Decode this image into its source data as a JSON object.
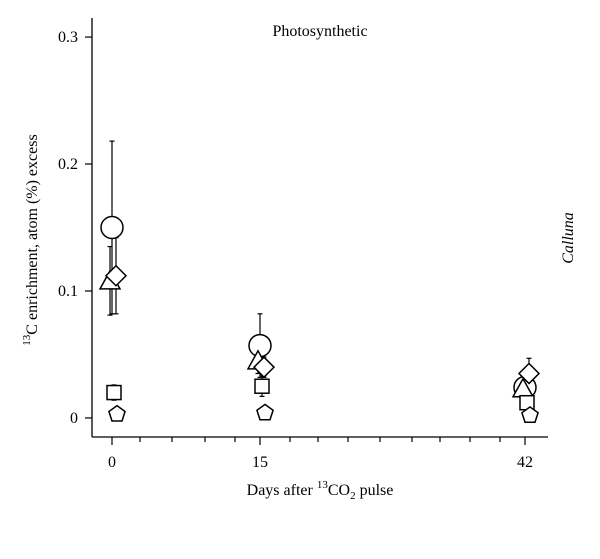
{
  "chart_data": {
    "type": "scatter",
    "title": "Photosynthetic",
    "side_label": "Calluna",
    "xlabel": {
      "pre": "Days after ",
      "sup": "13",
      "post1": "CO",
      "sub": "2",
      "post2": " pulse"
    },
    "ylabel": {
      "sup": "13",
      "rest": "C enrichment, atom (%) excess"
    },
    "x_ticks": [
      0,
      15,
      42
    ],
    "y_ticks": [
      {
        "value": 0,
        "label": "0"
      },
      {
        "value": 0.1,
        "label": "0.1"
      },
      {
        "value": 0.2,
        "label": "0.2"
      },
      {
        "value": 0.3,
        "label": "0.3"
      }
    ],
    "ylim": [
      -0.015,
      0.315
    ],
    "series": [
      {
        "marker": "circle",
        "points": [
          {
            "x": 0,
            "y": 0.15,
            "err": 0.068
          },
          {
            "x": 15,
            "y": 0.057,
            "err": 0.025
          },
          {
            "x": 42,
            "y": 0.024,
            "err": 0.01
          }
        ]
      },
      {
        "marker": "triangle",
        "points": [
          {
            "x": 0,
            "y": 0.108,
            "err": 0.027
          },
          {
            "x": 15,
            "y": 0.045,
            "err": 0.01
          },
          {
            "x": 42,
            "y": 0.023,
            "err": 0.008
          }
        ]
      },
      {
        "marker": "diamond",
        "points": [
          {
            "x": 0,
            "y": 0.112,
            "err": 0.03
          },
          {
            "x": 15,
            "y": 0.04,
            "err": 0.008
          },
          {
            "x": 42,
            "y": 0.035,
            "err": 0.012
          }
        ]
      },
      {
        "marker": "square",
        "points": [
          {
            "x": 0,
            "y": 0.02,
            "err": 0.006
          },
          {
            "x": 15,
            "y": 0.025,
            "err": 0.008
          },
          {
            "x": 42,
            "y": 0.012,
            "err": 0.004
          }
        ]
      },
      {
        "marker": "pentagon",
        "points": [
          {
            "x": 0,
            "y": 0.003,
            "err": 0.002
          },
          {
            "x": 15,
            "y": 0.004,
            "err": 0.002
          },
          {
            "x": 42,
            "y": 0.002,
            "err": 0.002
          }
        ]
      }
    ],
    "grid": false,
    "legend": "none"
  }
}
